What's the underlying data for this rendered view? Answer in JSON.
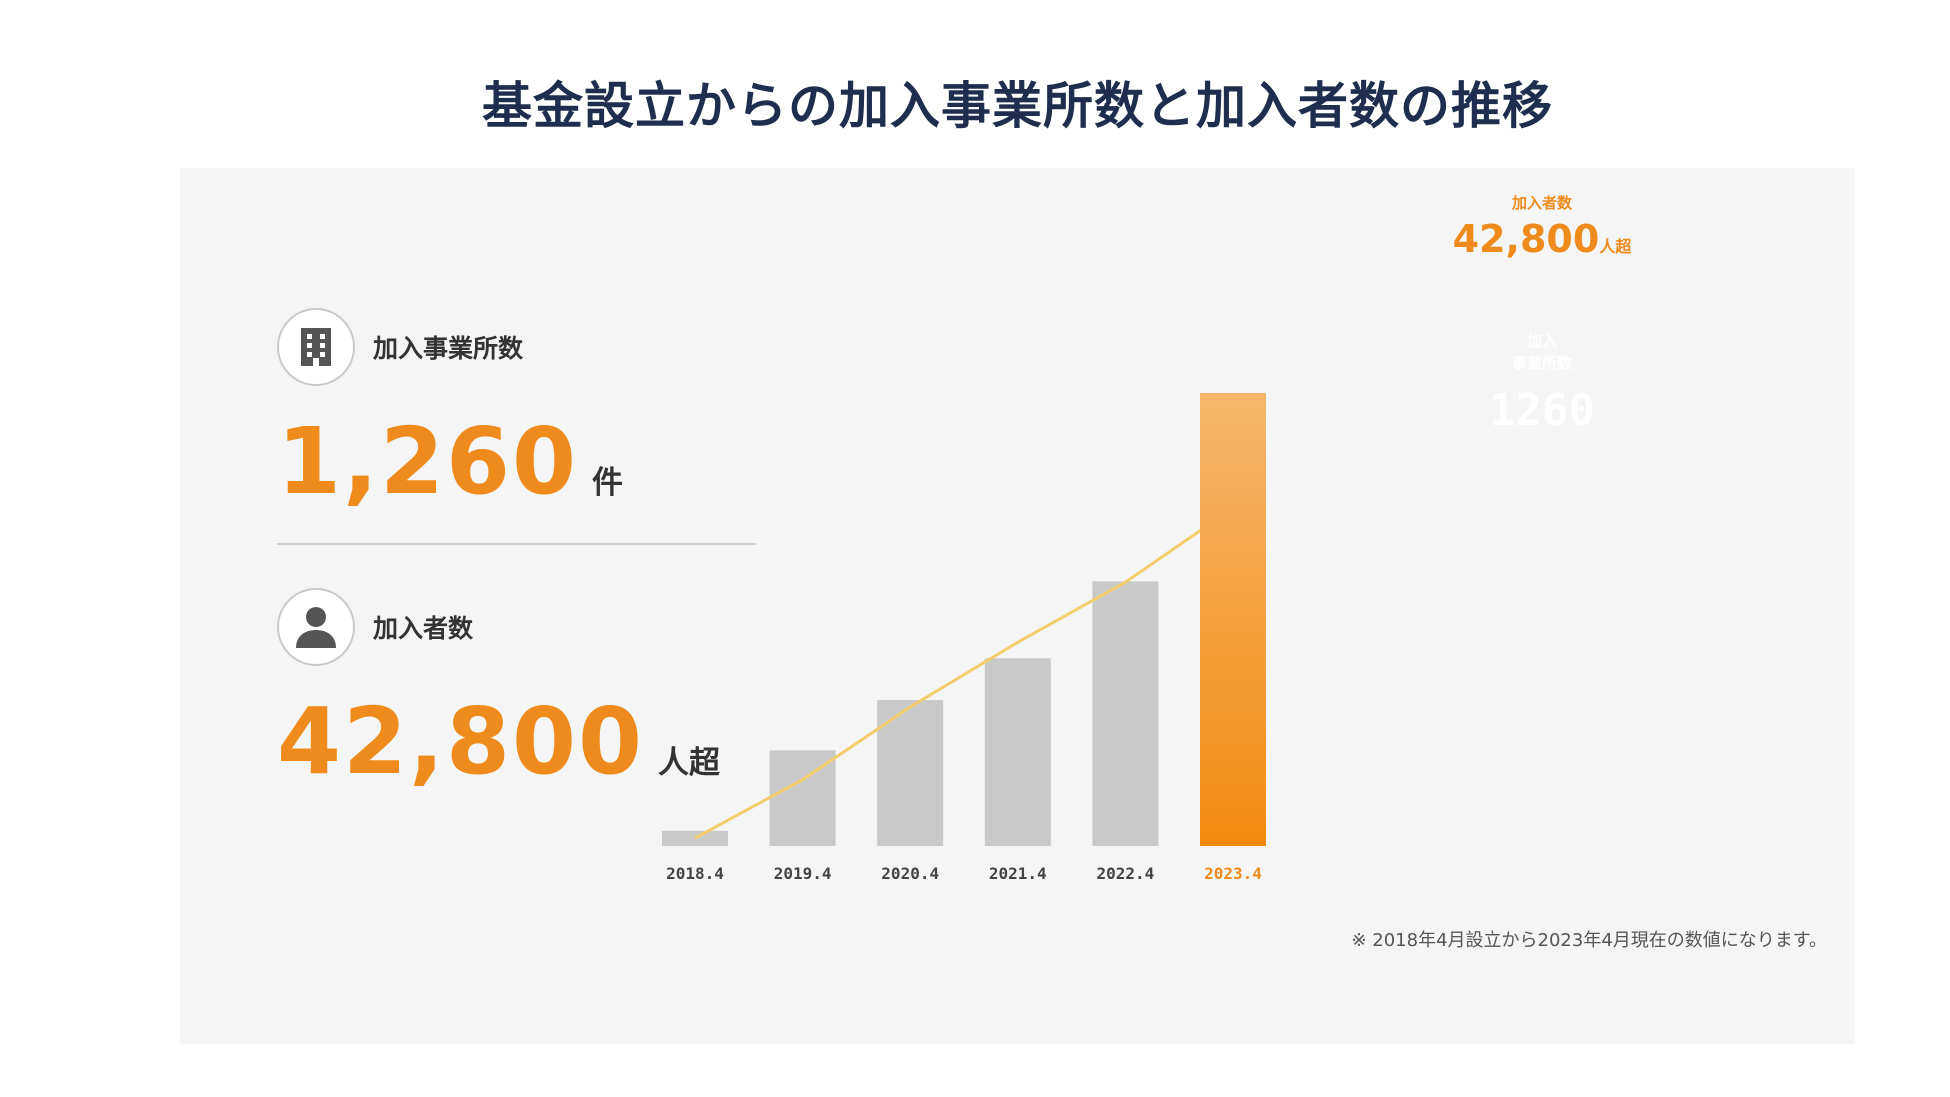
{
  "page_title": "基金設立からの加入事業所数と加入者数の推移",
  "stats": {
    "establishments": {
      "label": "加入事業所数",
      "value": "1,260",
      "unit": "件",
      "icon": "building-icon"
    },
    "members": {
      "label": "加入者数",
      "value": "42,800",
      "unit": "人超",
      "icon": "person-icon"
    }
  },
  "highlight": {
    "members_label": "加入者数",
    "members_value": "42,800",
    "members_unit": "人超",
    "est_label_line1": "加入",
    "est_label_line2": "事業所数",
    "est_value": "1260"
  },
  "footnote": "※ 2018年4月設立から2023年4月現在の数値になります。",
  "colors": {
    "accent": "#ee8b1c",
    "bar_gray": "#c9c9c9",
    "line": "#f3cd6b",
    "title": "#1f2d4e"
  },
  "chart_data": {
    "type": "bar",
    "categories": [
      "2018.4",
      "2019.4",
      "2020.4",
      "2021.4",
      "2022.4",
      "2023.4"
    ],
    "series": [
      {
        "name": "加入事業所数",
        "type": "bar",
        "values": [
          42,
          266,
          406,
          522,
          736,
          1260
        ]
      },
      {
        "name": "加入者数",
        "type": "line",
        "values": [
          1000,
          8400,
          17600,
          25800,
          33400,
          42800
        ]
      }
    ],
    "highlight_category": "2023.4",
    "ylim_bar": [
      0,
      1260
    ],
    "ylim_line": [
      0,
      42800
    ],
    "title": "",
    "xlabel": "",
    "ylabel": ""
  }
}
